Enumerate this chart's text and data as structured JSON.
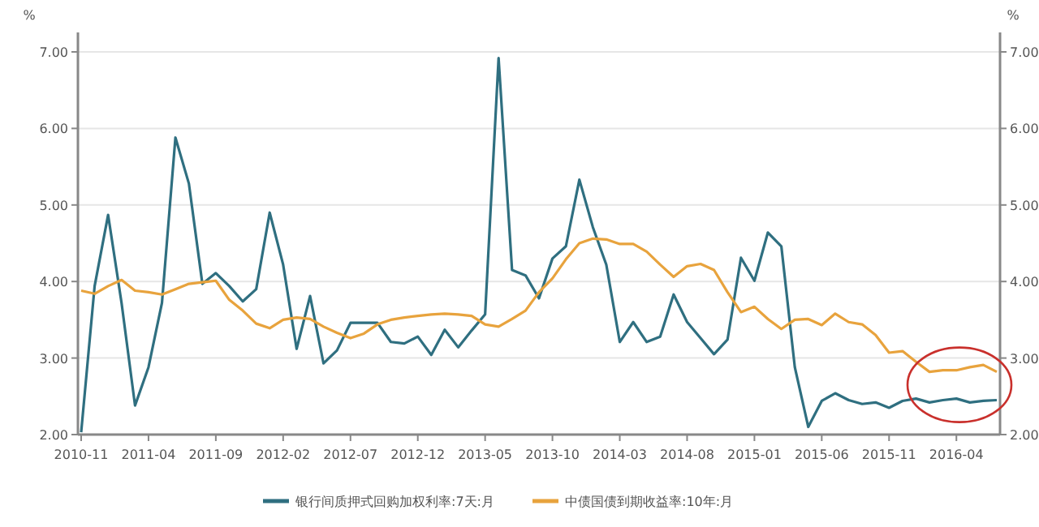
{
  "chart_data": {
    "type": "line",
    "categories": [
      "2010-11",
      null,
      null,
      null,
      null,
      "2011-04",
      null,
      null,
      null,
      null,
      "2011-09",
      null,
      null,
      null,
      null,
      "2012-02",
      null,
      null,
      null,
      null,
      "2012-07",
      null,
      null,
      null,
      null,
      "2012-12",
      null,
      null,
      null,
      null,
      "2013-05",
      null,
      null,
      null,
      null,
      "2013-10",
      null,
      null,
      null,
      null,
      "2014-03",
      null,
      null,
      null,
      null,
      "2014-08",
      null,
      null,
      null,
      null,
      "2015-01",
      null,
      null,
      null,
      null,
      "2015-06",
      null,
      null,
      null,
      null,
      "2015-11",
      null,
      null,
      null,
      null,
      "2016-04",
      null,
      null,
      null
    ],
    "series": [
      {
        "name": "银行间质押式回购加权利率:7天:月",
        "color": "#2f6f80",
        "values": [
          2.03,
          3.94,
          4.87,
          3.72,
          2.38,
          2.88,
          3.72,
          5.88,
          5.28,
          3.97,
          4.11,
          3.94,
          3.74,
          3.9,
          4.9,
          4.22,
          3.12,
          3.81,
          2.93,
          3.1,
          3.46,
          3.46,
          3.46,
          3.21,
          3.19,
          3.28,
          3.04,
          3.37,
          3.14,
          3.36,
          3.57,
          6.92,
          4.15,
          4.08,
          3.78,
          4.3,
          4.46,
          5.33,
          4.71,
          4.22,
          3.21,
          3.47,
          3.21,
          3.28,
          3.83,
          3.47,
          3.26,
          3.05,
          3.24,
          4.31,
          4.01,
          4.64,
          4.46,
          2.88,
          2.1,
          2.44,
          2.54,
          2.45,
          2.4,
          2.42,
          2.35,
          2.44,
          2.47,
          2.42,
          2.45,
          2.47,
          2.42,
          2.44,
          2.45
        ]
      },
      {
        "name": "中债国债到期收益率:10年:月",
        "color": "#e8a33d",
        "values": [
          3.88,
          3.84,
          3.94,
          4.02,
          3.88,
          3.86,
          3.83,
          3.9,
          3.97,
          3.99,
          4.01,
          3.76,
          3.62,
          3.45,
          3.39,
          3.5,
          3.53,
          3.51,
          3.41,
          3.33,
          3.26,
          3.32,
          3.44,
          3.5,
          3.53,
          3.55,
          3.57,
          3.58,
          3.57,
          3.55,
          3.44,
          3.41,
          3.51,
          3.62,
          3.86,
          4.04,
          4.29,
          4.5,
          4.56,
          4.55,
          4.49,
          4.49,
          4.39,
          4.22,
          4.06,
          4.2,
          4.23,
          4.15,
          3.86,
          3.6,
          3.67,
          3.51,
          3.38,
          3.5,
          3.51,
          3.43,
          3.58,
          3.47,
          3.44,
          3.3,
          3.07,
          3.09,
          2.95,
          2.82,
          2.84,
          2.84,
          2.88,
          2.91,
          2.82
        ]
      }
    ],
    "ylabel": "%",
    "y2label": "%",
    "ylim": [
      2,
      7
    ],
    "yticks": [
      {
        "value": 2,
        "label": "2.00"
      },
      {
        "value": 3,
        "label": "3.00"
      },
      {
        "value": 4,
        "label": "4.00"
      },
      {
        "value": 5,
        "label": "5.00"
      },
      {
        "value": 6,
        "label": "6.00"
      },
      {
        "value": 7,
        "label": "7.00"
      }
    ],
    "y2lim": [
      2,
      7
    ],
    "y2ticks": [
      {
        "value": 2,
        "label": "2.00"
      },
      {
        "value": 3,
        "label": "3.00"
      },
      {
        "value": 4,
        "label": "4.00"
      },
      {
        "value": 5,
        "label": "5.00"
      },
      {
        "value": 6,
        "label": "6.00"
      },
      {
        "value": 7,
        "label": "7.00"
      }
    ],
    "grid": "y",
    "legend": "bottom",
    "marker": "none",
    "line_style": "solid"
  }
}
